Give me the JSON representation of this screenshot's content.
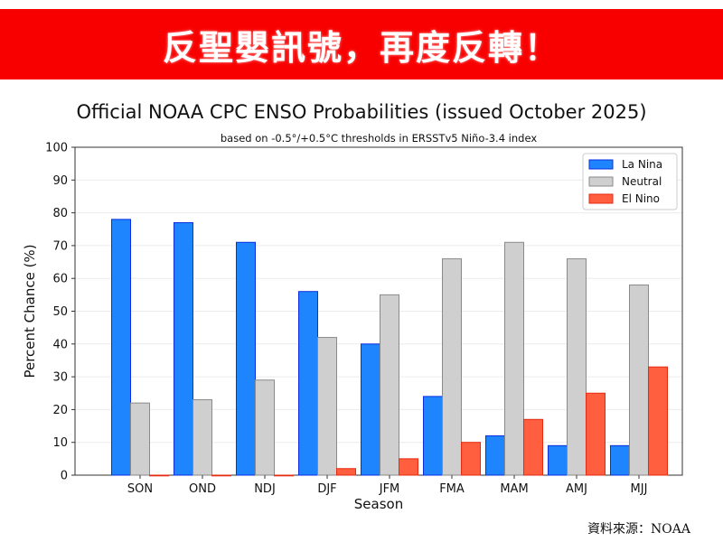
{
  "banner": {
    "text": "反聖嬰訊號，再度反轉！",
    "color": "#f80000"
  },
  "source": "資料來源：NOAA",
  "chart_data": {
    "type": "bar",
    "title": "Official NOAA CPC ENSO Probabilities (issued October 2025)",
    "subtitle": "based on -0.5°/+0.5°C thresholds in ERSSTv5 Niño-3.4 index",
    "xlabel": "Season",
    "ylabel": "Percent Chance (%)",
    "ylim": [
      0,
      100
    ],
    "yticks": [
      0,
      10,
      20,
      30,
      40,
      50,
      60,
      70,
      80,
      90,
      100
    ],
    "grid": true,
    "legend_position": "top-right",
    "categories": [
      "SON",
      "OND",
      "NDJ",
      "DJF",
      "JFM",
      "FMA",
      "MAM",
      "AMJ",
      "MJJ"
    ],
    "series": [
      {
        "name": "La Nina",
        "color": "#1f85ff",
        "edge": "#0a2ee0",
        "values": [
          78,
          77,
          71,
          56,
          40,
          24,
          12,
          9,
          9
        ]
      },
      {
        "name": "Neutral",
        "color": "#cfcfcf",
        "edge": "#8a8a8a",
        "values": [
          22,
          23,
          29,
          42,
          55,
          66,
          71,
          66,
          58
        ]
      },
      {
        "name": "El Nino",
        "color": "#ff5e3f",
        "edge": "#e52a10",
        "values": [
          0,
          0,
          0,
          2,
          5,
          10,
          17,
          25,
          33
        ]
      }
    ]
  }
}
